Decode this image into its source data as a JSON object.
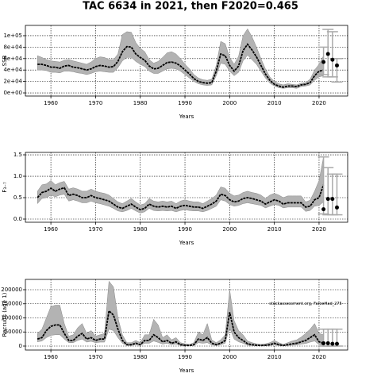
{
  "chart_data": [
    {
      "type": "line",
      "title": "TAC 6634 in 2021, then F2020=0.465",
      "ylabel": "SSB",
      "xlabel": "Years",
      "x": [
        1957,
        1958,
        1959,
        1960,
        1961,
        1962,
        1963,
        1964,
        1965,
        1966,
        1967,
        1968,
        1969,
        1970,
        1971,
        1972,
        1973,
        1974,
        1975,
        1976,
        1977,
        1978,
        1979,
        1980,
        1981,
        1982,
        1983,
        1984,
        1985,
        1986,
        1987,
        1988,
        1989,
        1990,
        1991,
        1992,
        1993,
        1994,
        1995,
        1996,
        1997,
        1998,
        1999,
        2000,
        2001,
        2002,
        2003,
        2004,
        2005,
        2006,
        2007,
        2008,
        2009,
        2010,
        2011,
        2012,
        2013,
        2014,
        2015,
        2016,
        2017,
        2018,
        2019,
        2020,
        2021
      ],
      "values": [
        50000,
        50000,
        48000,
        45000,
        45000,
        43000,
        47000,
        48000,
        45000,
        44000,
        42000,
        40000,
        42000,
        46000,
        48000,
        47000,
        45000,
        46000,
        55000,
        72000,
        81000,
        80000,
        68000,
        62000,
        57000,
        47000,
        42000,
        43000,
        48000,
        53000,
        54000,
        52000,
        47000,
        40000,
        33000,
        25000,
        20000,
        18000,
        17000,
        18000,
        38000,
        68000,
        65000,
        48000,
        38000,
        47000,
        74000,
        85000,
        75000,
        63000,
        48000,
        33000,
        22000,
        15000,
        12000,
        10000,
        12000,
        12000,
        11000,
        14000,
        15000,
        18000,
        30000,
        38000,
        40000
      ],
      "low": [
        40000,
        40000,
        39000,
        36000,
        36000,
        35000,
        38000,
        38000,
        37000,
        35000,
        34000,
        32000,
        34000,
        37000,
        38000,
        37000,
        36000,
        36000,
        44000,
        56000,
        62000,
        62000,
        55000,
        50000,
        46000,
        38000,
        34000,
        34000,
        38000,
        42000,
        43000,
        42000,
        38000,
        32000,
        26000,
        20000,
        16000,
        14000,
        13000,
        14000,
        30000,
        52000,
        50000,
        38000,
        30000,
        36000,
        56000,
        66000,
        58000,
        50000,
        38000,
        26000,
        17000,
        12000,
        9000,
        8000,
        9000,
        9000,
        8000,
        11000,
        12000,
        14000,
        22000,
        28000,
        30000
      ],
      "high": [
        65000,
        62000,
        58000,
        56000,
        55000,
        54000,
        57000,
        58000,
        56000,
        54000,
        52000,
        50000,
        54000,
        60000,
        63000,
        62000,
        58000,
        58000,
        68000,
        102000,
        107000,
        106000,
        88000,
        78000,
        72000,
        58000,
        52000,
        55000,
        62000,
        70000,
        72000,
        68000,
        60000,
        50000,
        42000,
        32000,
        26000,
        23000,
        22000,
        24000,
        48000,
        90000,
        86000,
        62000,
        50000,
        64000,
        100000,
        112000,
        98000,
        80000,
        60000,
        42000,
        28000,
        20000,
        16000,
        14000,
        16000,
        15000,
        14000,
        17000,
        18000,
        24000,
        40000,
        50000,
        65000
      ],
      "color": "#000000",
      "band_color": "#b3b3b3",
      "forecast": {
        "x": [
          2021,
          2022,
          2023,
          2024
        ],
        "values": [
          54000,
          68000,
          58000,
          48000
        ],
        "low": [
          32000,
          28000,
          28000,
          19000
        ],
        "high": [
          80000,
          111000,
          107000,
          60000
        ],
        "color": "#000000",
        "error_color": "#aaaaaa"
      },
      "xlim": [
        1954.3,
        2026.4
      ],
      "ylim": [
        -5500,
        118000
      ],
      "xticks": [
        1960,
        1970,
        1980,
        1990,
        2000,
        2010,
        2020
      ],
      "yticks": [
        {
          "value": 0,
          "label": "0e+00"
        },
        {
          "value": 20000,
          "label": "2e+04"
        },
        {
          "value": 40000,
          "label": "4e+04"
        },
        {
          "value": 60000,
          "label": "6e+04"
        },
        {
          "value": 80000,
          "label": "8e+04"
        },
        {
          "value": 100000,
          "label": "1e+05"
        }
      ],
      "grid": true
    },
    {
      "type": "line",
      "ylabel": "F₃₋₇",
      "xlabel": "Years",
      "x": [
        1957,
        1958,
        1959,
        1960,
        1961,
        1962,
        1963,
        1964,
        1965,
        1966,
        1967,
        1968,
        1969,
        1970,
        1971,
        1972,
        1973,
        1974,
        1975,
        1976,
        1977,
        1978,
        1979,
        1980,
        1981,
        1982,
        1983,
        1984,
        1985,
        1986,
        1987,
        1988,
        1989,
        1990,
        1991,
        1992,
        1993,
        1994,
        1995,
        1996,
        1997,
        1998,
        1999,
        2000,
        2001,
        2002,
        2003,
        2004,
        2005,
        2006,
        2007,
        2008,
        2009,
        2010,
        2011,
        2012,
        2013,
        2014,
        2015,
        2016,
        2017,
        2018,
        2019,
        2020,
        2021
      ],
      "values": [
        0.5,
        0.62,
        0.65,
        0.72,
        0.65,
        0.7,
        0.73,
        0.55,
        0.58,
        0.55,
        0.5,
        0.5,
        0.55,
        0.5,
        0.48,
        0.45,
        0.42,
        0.35,
        0.28,
        0.25,
        0.3,
        0.35,
        0.28,
        0.22,
        0.25,
        0.35,
        0.3,
        0.28,
        0.3,
        0.28,
        0.3,
        0.25,
        0.3,
        0.32,
        0.3,
        0.28,
        0.28,
        0.25,
        0.3,
        0.35,
        0.42,
        0.58,
        0.55,
        0.45,
        0.4,
        0.42,
        0.48,
        0.5,
        0.48,
        0.45,
        0.42,
        0.35,
        0.4,
        0.45,
        0.42,
        0.35,
        0.38,
        0.38,
        0.38,
        0.38,
        0.28,
        0.3,
        0.45,
        0.5,
        0.8
      ],
      "low": [
        0.36,
        0.48,
        0.5,
        0.56,
        0.52,
        0.56,
        0.58,
        0.42,
        0.45,
        0.42,
        0.38,
        0.38,
        0.42,
        0.38,
        0.36,
        0.33,
        0.3,
        0.25,
        0.19,
        0.17,
        0.2,
        0.25,
        0.19,
        0.14,
        0.17,
        0.25,
        0.2,
        0.19,
        0.2,
        0.19,
        0.2,
        0.17,
        0.2,
        0.22,
        0.2,
        0.19,
        0.19,
        0.17,
        0.2,
        0.25,
        0.3,
        0.45,
        0.42,
        0.34,
        0.3,
        0.32,
        0.36,
        0.38,
        0.36,
        0.34,
        0.32,
        0.26,
        0.3,
        0.34,
        0.32,
        0.26,
        0.28,
        0.28,
        0.28,
        0.28,
        0.18,
        0.2,
        0.3,
        0.32,
        0.4
      ],
      "high": [
        0.65,
        0.8,
        0.82,
        0.9,
        0.8,
        0.85,
        0.88,
        0.7,
        0.73,
        0.7,
        0.65,
        0.65,
        0.7,
        0.65,
        0.62,
        0.6,
        0.56,
        0.48,
        0.4,
        0.36,
        0.42,
        0.48,
        0.4,
        0.33,
        0.36,
        0.48,
        0.42,
        0.4,
        0.42,
        0.4,
        0.42,
        0.36,
        0.42,
        0.45,
        0.42,
        0.4,
        0.4,
        0.36,
        0.42,
        0.48,
        0.56,
        0.75,
        0.72,
        0.6,
        0.54,
        0.56,
        0.62,
        0.65,
        0.62,
        0.6,
        0.56,
        0.48,
        0.56,
        0.6,
        0.56,
        0.5,
        0.54,
        0.54,
        0.54,
        0.54,
        0.4,
        0.44,
        0.65,
        0.9,
        1.45
      ],
      "color": "#000000",
      "band_color": "#b3b3b3",
      "forecast": {
        "x": [
          2021,
          2022,
          2023,
          2024
        ],
        "values": [
          0.23,
          0.47,
          0.47,
          0.27
        ],
        "low": [
          0.12,
          0.1,
          0.1,
          0.1
        ],
        "high": [
          1.45,
          1.2,
          1.05,
          1.05
        ],
        "color": "#000000",
        "error_color": "#aaaaaa"
      },
      "xlim": [
        1954.3,
        2026.4
      ],
      "ylim": [
        -0.074,
        1.556
      ],
      "xticks": [
        1960,
        1970,
        1980,
        1990,
        2000,
        2010,
        2020
      ],
      "yticks": [
        {
          "value": 0,
          "label": "0.0"
        },
        0.5,
        {
          "value": 1,
          "label": "1.0"
        },
        1.5
      ],
      "grid": true
    },
    {
      "type": "line",
      "ylabel": "Recruits (age 1)",
      "xlabel": "Years",
      "annotation": "stockassessment.org, FaroeHad_275",
      "x": [
        1957,
        1958,
        1959,
        1960,
        1961,
        1962,
        1963,
        1964,
        1965,
        1966,
        1967,
        1968,
        1969,
        1970,
        1971,
        1972,
        1973,
        1974,
        1975,
        1976,
        1977,
        1978,
        1979,
        1980,
        1981,
        1982,
        1983,
        1984,
        1985,
        1986,
        1987,
        1988,
        1989,
        1990,
        1991,
        1992,
        1993,
        1994,
        1995,
        1996,
        1997,
        1998,
        1999,
        2000,
        2001,
        2002,
        2003,
        2004,
        2005,
        2006,
        2007,
        2008,
        2009,
        2010,
        2011,
        2012,
        2013,
        2014,
        2015,
        2016,
        2017,
        2018,
        2019,
        2020,
        2021
      ],
      "values": [
        25000,
        30000,
        55000,
        70000,
        75000,
        75000,
        45000,
        20000,
        20000,
        35000,
        45000,
        25000,
        30000,
        20000,
        25000,
        25000,
        125000,
        110000,
        60000,
        20000,
        5000,
        5000,
        10000,
        5000,
        20000,
        20000,
        40000,
        30000,
        15000,
        20000,
        10000,
        15000,
        5000,
        3000,
        2000,
        5000,
        25000,
        20000,
        30000,
        10000,
        5000,
        10000,
        20000,
        120000,
        50000,
        30000,
        20000,
        8000,
        5000,
        3000,
        2000,
        3000,
        5000,
        10000,
        5000,
        2000,
        5000,
        8000,
        10000,
        15000,
        20000,
        30000,
        40000,
        15000,
        10000
      ],
      "low": [
        15000,
        18000,
        30000,
        38000,
        40000,
        40000,
        25000,
        12000,
        12000,
        20000,
        25000,
        14000,
        17000,
        12000,
        14000,
        14000,
        60000,
        55000,
        30000,
        10000,
        2000,
        2000,
        5000,
        2000,
        10000,
        10000,
        18000,
        13000,
        7000,
        10000,
        5000,
        7000,
        2000,
        1000,
        500,
        2000,
        12000,
        10000,
        12000,
        4000,
        2000,
        5000,
        10000,
        65000,
        25000,
        15000,
        10000,
        3000,
        2000,
        1000,
        500,
        1000,
        2000,
        4000,
        2000,
        500,
        2000,
        3000,
        4000,
        7000,
        9000,
        14000,
        18000,
        5000,
        3000
      ],
      "high": [
        45000,
        60000,
        100000,
        140000,
        145000,
        145000,
        80000,
        35000,
        40000,
        65000,
        80000,
        45000,
        55000,
        35000,
        40000,
        45000,
        230000,
        210000,
        100000,
        40000,
        12000,
        12000,
        20000,
        12000,
        40000,
        40000,
        95000,
        75000,
        30000,
        40000,
        22000,
        30000,
        12000,
        8000,
        6000,
        12000,
        50000,
        40000,
        80000,
        22000,
        12000,
        22000,
        40000,
        200000,
        90000,
        55000,
        40000,
        18000,
        12000,
        8000,
        6000,
        8000,
        12000,
        20000,
        12000,
        6000,
        12000,
        18000,
        22000,
        32000,
        45000,
        60000,
        80000,
        45000,
        40000
      ],
      "color": "#000000",
      "band_color": "#b3b3b3",
      "forecast": {
        "x": [
          2021,
          2022,
          2023,
          2024
        ],
        "values": [
          10000,
          10000,
          8000,
          8000
        ],
        "low": [
          0,
          0,
          0,
          0
        ],
        "high": [
          60000,
          60000,
          60000,
          60000
        ],
        "color": "#000000",
        "error_color": "#aaaaaa"
      },
      "xlim": [
        1954.3,
        2026.4
      ],
      "ylim": [
        -14100,
        236600
      ],
      "xticks": [
        1960,
        1970,
        1980,
        1990,
        2000,
        2010,
        2020
      ],
      "yticks": [
        0,
        50000,
        100000,
        150000,
        200000
      ],
      "grid": true
    }
  ]
}
